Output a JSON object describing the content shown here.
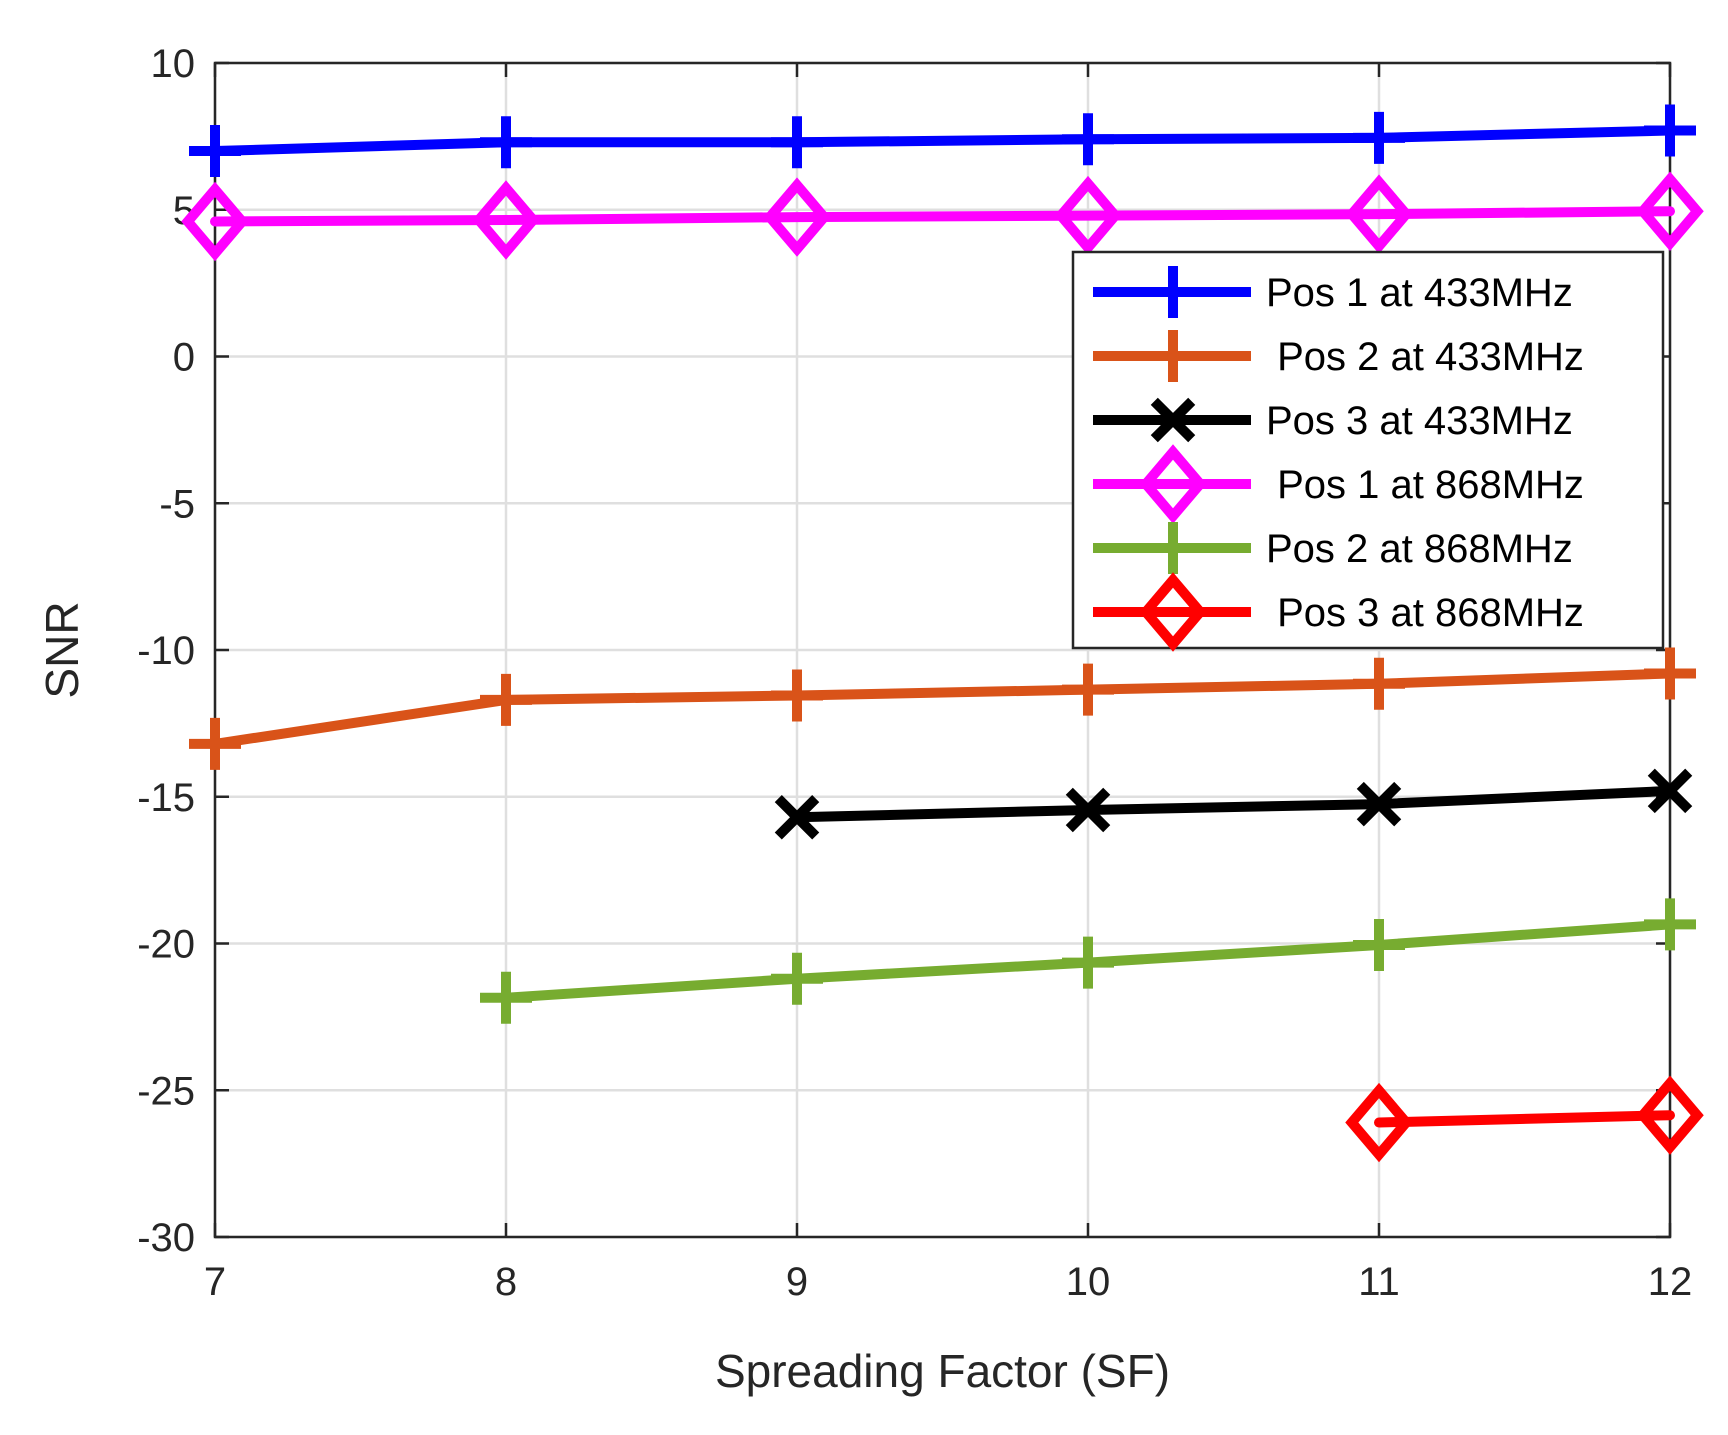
{
  "chart_data": {
    "type": "line",
    "title": "",
    "xlabel": "Spreading Factor (SF)",
    "ylabel": "SNR",
    "xlim": [
      7,
      12
    ],
    "ylim": [
      -30,
      10
    ],
    "xticks": [
      7,
      8,
      9,
      10,
      11,
      12
    ],
    "yticks": [
      -30,
      -25,
      -20,
      -15,
      -10,
      -5,
      0,
      5,
      10
    ],
    "xtick_labels": [
      "7",
      "8",
      "9",
      "10",
      "11",
      "12"
    ],
    "ytick_labels": [
      "-30",
      "-25",
      "-20",
      "-15",
      "-10",
      "-5",
      "0",
      "5",
      "10"
    ],
    "grid": true,
    "legend_position": "top-right",
    "series": [
      {
        "name": "Pos 1 at 433MHz",
        "color": "#0000ff",
        "marker": "plus",
        "x": [
          7,
          8,
          9,
          10,
          11,
          12
        ],
        "y": [
          7.0,
          7.3,
          7.3,
          7.4,
          7.45,
          7.7
        ]
      },
      {
        "name": " Pos 2 at 433MHz",
        "color": "#d95319",
        "marker": "plus",
        "x": [
          7,
          8,
          9,
          10,
          11,
          12
        ],
        "y": [
          -13.2,
          -11.7,
          -11.55,
          -11.35,
          -11.15,
          -10.8
        ]
      },
      {
        "name": "Pos 3 at 433MHz",
        "color": "#000000",
        "marker": "x",
        "x": [
          9,
          10,
          11,
          12
        ],
        "y": [
          -15.7,
          -15.45,
          -15.25,
          -14.8
        ]
      },
      {
        "name": " Pos 1 at 868MHz",
        "color": "#ff00ff",
        "marker": "diamond",
        "x": [
          7,
          8,
          9,
          10,
          11,
          12
        ],
        "y": [
          4.6,
          4.65,
          4.75,
          4.8,
          4.85,
          4.95
        ]
      },
      {
        "name": "Pos 2 at 868MHz",
        "color": "#77ac30",
        "marker": "plus",
        "x": [
          8,
          9,
          10,
          11,
          12
        ],
        "y": [
          -21.85,
          -21.2,
          -20.65,
          -20.05,
          -19.35
        ]
      },
      {
        "name": " Pos 3 at 868MHz",
        "color": "#ff0000",
        "marker": "diamond",
        "x": [
          11,
          12
        ],
        "y": [
          -26.1,
          -25.85
        ]
      }
    ]
  }
}
